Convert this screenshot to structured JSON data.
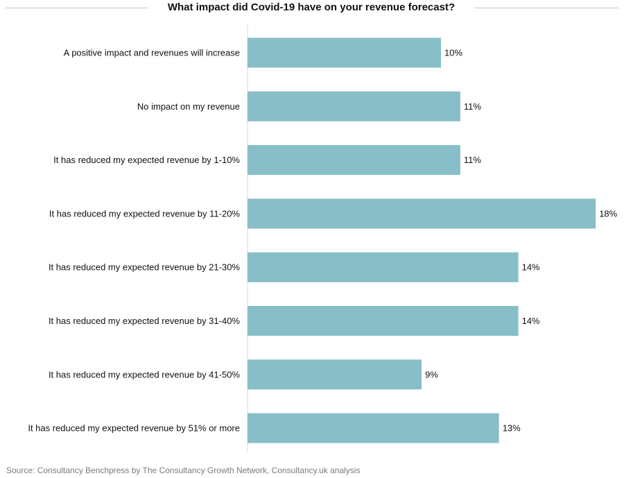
{
  "chart_data": {
    "type": "bar",
    "orientation": "horizontal",
    "title": "What impact did Covid-19 have on your revenue forecast?",
    "categories": [
      "A positive impact and revenues will increase",
      "No impact on my revenue",
      "It has reduced my expected revenue by 1-10%",
      "It has reduced my expected revenue by 11-20%",
      "It has reduced my expected revenue by 21-30%",
      "It has reduced my expected revenue by 31-40%",
      "It has reduced my expected revenue by 41-50%",
      "It has reduced my expected revenue by 51% or more"
    ],
    "values": [
      10,
      11,
      11,
      18,
      14,
      14,
      9,
      13
    ],
    "value_labels": [
      "10%",
      "11%",
      "11%",
      "18%",
      "14%",
      "14%",
      "9%",
      "13%"
    ],
    "unit": "%",
    "grid": false,
    "legend": "none",
    "bar_color": "#87bec8",
    "axis_color": "#d9d9d9",
    "title_rule_color": "#c8c8c8"
  },
  "source": "Source: Consultancy Benchpress by The Consultancy Growth Network, Consultancy.uk analysis"
}
